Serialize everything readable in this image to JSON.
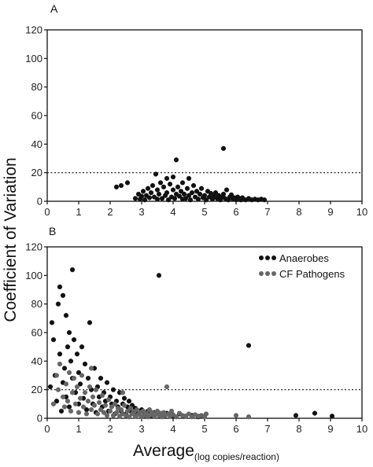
{
  "figure": {
    "ylabel": "Coefficient of Variation",
    "xlabel_main": "Average",
    "xlabel_sub": "(log copies/reaction)"
  },
  "chart_data": [
    {
      "panel": "A",
      "type": "scatter",
      "xlim": [
        0,
        10
      ],
      "ylim": [
        0,
        120
      ],
      "xticks": [
        0,
        1,
        2,
        3,
        4,
        5,
        6,
        7,
        8,
        9,
        10
      ],
      "yticks": [
        0,
        20,
        40,
        60,
        80,
        100,
        120
      ],
      "reference_line": {
        "y": 20,
        "style": "dotted"
      },
      "series": [
        {
          "color": "#111111",
          "points": [
            [
              2.2,
              10
            ],
            [
              2.35,
              11
            ],
            [
              2.55,
              13
            ],
            [
              2.8,
              2
            ],
            [
              2.9,
              5
            ],
            [
              2.95,
              1.5
            ],
            [
              3.0,
              3.5
            ],
            [
              3.05,
              7
            ],
            [
              3.1,
              1
            ],
            [
              3.15,
              4
            ],
            [
              3.2,
              9
            ],
            [
              3.25,
              2.5
            ],
            [
              3.3,
              6
            ],
            [
              3.35,
              11
            ],
            [
              3.4,
              3
            ],
            [
              3.45,
              19
            ],
            [
              3.5,
              8
            ],
            [
              3.5,
              1.5
            ],
            [
              3.55,
              5
            ],
            [
              3.6,
              13
            ],
            [
              3.65,
              2
            ],
            [
              3.7,
              10
            ],
            [
              3.75,
              4
            ],
            [
              3.8,
              16
            ],
            [
              3.8,
              6
            ],
            [
              3.85,
              1
            ],
            [
              3.9,
              12
            ],
            [
              3.95,
              3
            ],
            [
              4.0,
              8
            ],
            [
              4.0,
              17
            ],
            [
              4.05,
              2
            ],
            [
              4.1,
              5
            ],
            [
              4.1,
              29
            ],
            [
              4.15,
              10
            ],
            [
              4.2,
              3.5
            ],
            [
              4.25,
              7
            ],
            [
              4.3,
              1.5
            ],
            [
              4.3,
              13
            ],
            [
              4.35,
              5
            ],
            [
              4.4,
              2
            ],
            [
              4.45,
              9
            ],
            [
              4.5,
              16
            ],
            [
              4.5,
              4
            ],
            [
              4.55,
              1
            ],
            [
              4.6,
              6
            ],
            [
              4.65,
              11
            ],
            [
              4.7,
              3
            ],
            [
              4.75,
              7
            ],
            [
              4.8,
              1.5
            ],
            [
              4.85,
              5
            ],
            [
              4.9,
              9
            ],
            [
              4.95,
              2.5
            ],
            [
              5.0,
              4
            ],
            [
              5.05,
              1
            ],
            [
              5.1,
              7
            ],
            [
              5.15,
              3
            ],
            [
              5.2,
              5.5
            ],
            [
              5.25,
              1.5
            ],
            [
              5.3,
              3.5
            ],
            [
              5.35,
              6
            ],
            [
              5.4,
              2
            ],
            [
              5.45,
              4
            ],
            [
              5.5,
              1
            ],
            [
              5.55,
              3
            ],
            [
              5.6,
              37
            ],
            [
              5.6,
              5
            ],
            [
              5.65,
              2
            ],
            [
              5.7,
              8
            ],
            [
              5.75,
              1
            ],
            [
              5.8,
              3
            ],
            [
              5.85,
              4.5
            ],
            [
              5.9,
              1.5
            ],
            [
              5.95,
              2.5
            ],
            [
              6.0,
              1
            ],
            [
              6.05,
              3
            ],
            [
              6.1,
              2
            ],
            [
              6.15,
              1
            ],
            [
              6.2,
              2.5
            ],
            [
              6.3,
              1
            ],
            [
              6.4,
              2
            ],
            [
              6.5,
              1
            ],
            [
              6.6,
              1.5
            ],
            [
              6.7,
              1
            ],
            [
              6.8,
              1.5
            ],
            [
              6.9,
              1
            ]
          ]
        }
      ]
    },
    {
      "panel": "B",
      "type": "scatter",
      "xlim": [
        0,
        10
      ],
      "ylim": [
        0,
        120
      ],
      "xticks": [
        0,
        1,
        2,
        3,
        4,
        5,
        6,
        7,
        8,
        9,
        10
      ],
      "yticks": [
        0,
        20,
        40,
        60,
        80,
        100,
        120
      ],
      "reference_line": {
        "y": 20,
        "style": "dotted"
      },
      "legend_position": "top-right",
      "series": [
        {
          "name": "Anaerobes",
          "color": "#111111",
          "points": [
            [
              0.1,
              22
            ],
            [
              0.15,
              67
            ],
            [
              0.2,
              55
            ],
            [
              0.25,
              30
            ],
            [
              0.3,
              12
            ],
            [
              0.35,
              80
            ],
            [
              0.4,
              92
            ],
            [
              0.4,
              45
            ],
            [
              0.45,
              5
            ],
            [
              0.5,
              86
            ],
            [
              0.5,
              25
            ],
            [
              0.55,
              35
            ],
            [
              0.6,
              72
            ],
            [
              0.6,
              15
            ],
            [
              0.65,
              50
            ],
            [
              0.7,
              60
            ],
            [
              0.7,
              8
            ],
            [
              0.75,
              40
            ],
            [
              0.8,
              104
            ],
            [
              0.8,
              28
            ],
            [
              0.85,
              55
            ],
            [
              0.9,
              18
            ],
            [
              0.95,
              45
            ],
            [
              1.0,
              32
            ],
            [
              1.0,
              10
            ],
            [
              1.05,
              24
            ],
            [
              1.1,
              50
            ],
            [
              1.15,
              14
            ],
            [
              1.2,
              38
            ],
            [
              1.25,
              6
            ],
            [
              1.3,
              28
            ],
            [
              1.35,
              67
            ],
            [
              1.4,
              20
            ],
            [
              1.45,
              10
            ],
            [
              1.5,
              35
            ],
            [
              1.55,
              4
            ],
            [
              1.6,
              22
            ],
            [
              1.65,
              15
            ],
            [
              1.7,
              28
            ],
            [
              1.75,
              8
            ],
            [
              1.8,
              18
            ],
            [
              1.85,
              12
            ],
            [
              1.9,
              25
            ],
            [
              1.95,
              5
            ],
            [
              2.0,
              15
            ],
            [
              2.05,
              10
            ],
            [
              2.1,
              20
            ],
            [
              2.15,
              3
            ],
            [
              2.2,
              12
            ],
            [
              2.25,
              8
            ],
            [
              2.3,
              18
            ],
            [
              2.35,
              5
            ],
            [
              2.4,
              10
            ],
            [
              2.45,
              14
            ],
            [
              2.5,
              3
            ],
            [
              2.55,
              8
            ],
            [
              2.6,
              12
            ],
            [
              2.65,
              5
            ],
            [
              2.7,
              9
            ],
            [
              2.75,
              3
            ],
            [
              2.8,
              7
            ],
            [
              2.9,
              4
            ],
            [
              3.0,
              6
            ],
            [
              3.1,
              3
            ],
            [
              3.2,
              5
            ],
            [
              3.3,
              2
            ],
            [
              3.4,
              4
            ],
            [
              3.55,
              100
            ],
            [
              3.6,
              3
            ],
            [
              3.7,
              2
            ],
            [
              3.8,
              3.5
            ],
            [
              4.0,
              2
            ],
            [
              4.2,
              3
            ],
            [
              4.4,
              1.5
            ],
            [
              4.6,
              2
            ],
            [
              4.8,
              1
            ],
            [
              5.0,
              1.5
            ],
            [
              6.4,
              51
            ],
            [
              7.9,
              2
            ],
            [
              8.5,
              3.5
            ],
            [
              9.05,
              1.5
            ]
          ]
        },
        {
          "name": "CF Pathogens",
          "color": "#666666",
          "points": [
            [
              0.2,
              10
            ],
            [
              0.3,
              30
            ],
            [
              0.35,
              20
            ],
            [
              0.4,
              38
            ],
            [
              0.5,
              15
            ],
            [
              0.55,
              8
            ],
            [
              0.6,
              24
            ],
            [
              0.65,
              12
            ],
            [
              0.7,
              32
            ],
            [
              0.75,
              5
            ],
            [
              0.8,
              18
            ],
            [
              0.85,
              28
            ],
            [
              0.9,
              10
            ],
            [
              0.95,
              22
            ],
            [
              1.0,
              4
            ],
            [
              1.05,
              14
            ],
            [
              1.1,
              30
            ],
            [
              1.15,
              8
            ],
            [
              1.2,
              18
            ],
            [
              1.25,
              3
            ],
            [
              1.3,
              12
            ],
            [
              1.35,
              22
            ],
            [
              1.4,
              6
            ],
            [
              1.45,
              15
            ],
            [
              1.5,
              9
            ],
            [
              1.55,
              20
            ],
            [
              1.6,
              3
            ],
            [
              1.65,
              11
            ],
            [
              1.7,
              6
            ],
            [
              1.75,
              16
            ],
            [
              1.8,
              4
            ],
            [
              1.85,
              9
            ],
            [
              1.9,
              2
            ],
            [
              1.95,
              13
            ],
            [
              2.0,
              5
            ],
            [
              2.05,
              8
            ],
            [
              2.1,
              2
            ],
            [
              2.15,
              10
            ],
            [
              2.2,
              4
            ],
            [
              2.25,
              7
            ],
            [
              2.3,
              1.5
            ],
            [
              2.35,
              6
            ],
            [
              2.4,
              3
            ],
            [
              2.45,
              9
            ],
            [
              2.5,
              2
            ],
            [
              2.55,
              5
            ],
            [
              2.6,
              1
            ],
            [
              2.65,
              7
            ],
            [
              2.7,
              3
            ],
            [
              2.75,
              4.5
            ],
            [
              2.8,
              1.5
            ],
            [
              2.85,
              6
            ],
            [
              2.9,
              2.5
            ],
            [
              2.95,
              4
            ],
            [
              3.0,
              1
            ],
            [
              3.05,
              5
            ],
            [
              3.1,
              2
            ],
            [
              3.15,
              3.5
            ],
            [
              3.2,
              1
            ],
            [
              3.25,
              6
            ],
            [
              3.3,
              2.5
            ],
            [
              3.35,
              4
            ],
            [
              3.4,
              1.5
            ],
            [
              3.45,
              3
            ],
            [
              3.5,
              5
            ],
            [
              3.55,
              2
            ],
            [
              3.6,
              3.5
            ],
            [
              3.65,
              1
            ],
            [
              3.7,
              4
            ],
            [
              3.75,
              2
            ],
            [
              3.8,
              22
            ],
            [
              3.85,
              3
            ],
            [
              3.9,
              1.5
            ],
            [
              3.95,
              5
            ],
            [
              4.0,
              2.5
            ],
            [
              4.1,
              1
            ],
            [
              4.2,
              3.5
            ],
            [
              4.3,
              2
            ],
            [
              4.4,
              1.5
            ],
            [
              4.5,
              3
            ],
            [
              4.6,
              1
            ],
            [
              4.7,
              2.5
            ],
            [
              4.8,
              1.5
            ],
            [
              4.9,
              2
            ],
            [
              5.0,
              1
            ],
            [
              5.05,
              3
            ],
            [
              6.0,
              2
            ],
            [
              6.4,
              1
            ],
            [
              2.4,
              18
            ],
            [
              1.4,
              35
            ]
          ]
        }
      ]
    }
  ]
}
